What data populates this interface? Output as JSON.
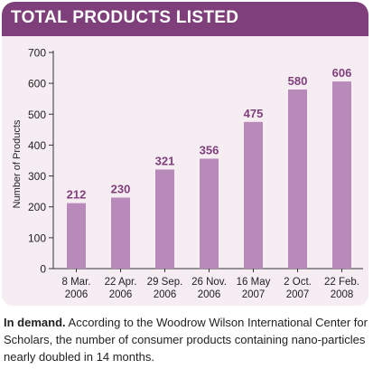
{
  "header": {
    "title": "TOTAL PRODUCTS LISTED"
  },
  "colors": {
    "header_bg": "#7e3f7a",
    "panel_bg": "#f6edf3",
    "bar": "#b88aba",
    "label": "#7e3f7a",
    "axis": "#333333"
  },
  "caption": {
    "lead": "In demand.",
    "text": "According to the Woodrow Wilson International Center for Scholars, the number of consumer products containing nano-particles nearly doubled in 14 months."
  },
  "chart_data": {
    "type": "bar",
    "categories": [
      [
        "8 Mar.",
        "2006"
      ],
      [
        "22 Apr.",
        "2006"
      ],
      [
        "29 Sep.",
        "2006"
      ],
      [
        "26 Nov.",
        "2006"
      ],
      [
        "16 May",
        "2007"
      ],
      [
        "2 Oct.",
        "2007"
      ],
      [
        "22 Feb.",
        "2008"
      ]
    ],
    "values": [
      212,
      230,
      321,
      356,
      475,
      580,
      606
    ],
    "data_labels": [
      "212",
      "230",
      "321",
      "356",
      "475",
      "580",
      "606"
    ],
    "title": "TOTAL PRODUCTS LISTED",
    "xlabel": "",
    "ylabel": "Number of Products",
    "ylim": [
      0,
      700
    ],
    "yticks": [
      0,
      100,
      200,
      300,
      400,
      500,
      600,
      700
    ],
    "grid": false,
    "legend": "none"
  }
}
